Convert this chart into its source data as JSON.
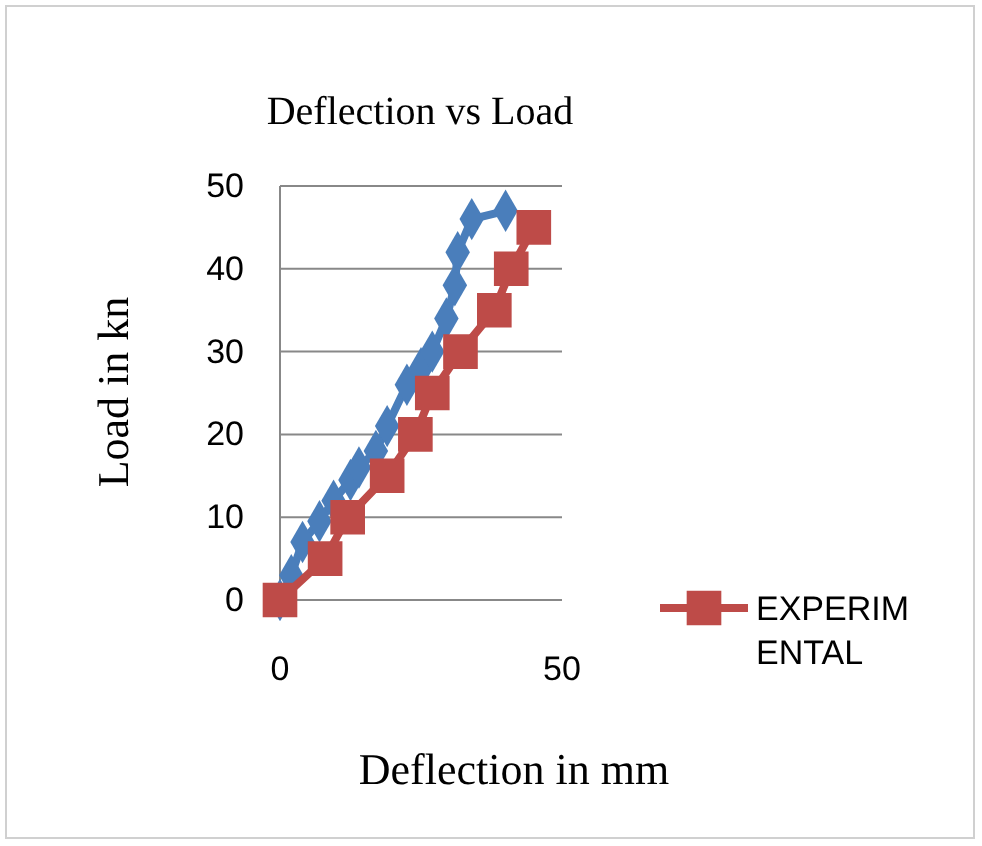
{
  "chart_data": {
    "type": "line",
    "title": "Deflection vs Load",
    "xlabel": "Deflection in mm",
    "ylabel": "Load in kn",
    "xlim": [
      0,
      50
    ],
    "xticks": [
      0,
      50
    ],
    "ylim": [
      0,
      50
    ],
    "yticks": [
      0,
      10,
      20,
      30,
      40,
      50
    ],
    "grid": "y",
    "legend": "right",
    "series": [
      {
        "color": "#4a7ebb",
        "marker": "diamond",
        "x": [
          0,
          2,
          4,
          7,
          9.5,
          12.5,
          14,
          17,
          19,
          22.5,
          25,
          27,
          29.5,
          31,
          31.5,
          34,
          40
        ],
        "values": [
          0,
          3,
          7,
          9.5,
          12,
          14.5,
          16,
          18,
          21,
          26,
          28,
          30,
          34,
          38,
          42,
          46,
          47
        ]
      },
      {
        "name": "EXPERIMENTAL",
        "color": "#be4b48",
        "marker": "square",
        "x": [
          0,
          8,
          12,
          19,
          24,
          27,
          32,
          38,
          41,
          45
        ],
        "values": [
          0,
          5,
          10,
          15,
          20,
          25,
          30,
          35,
          40,
          45
        ]
      }
    ]
  }
}
